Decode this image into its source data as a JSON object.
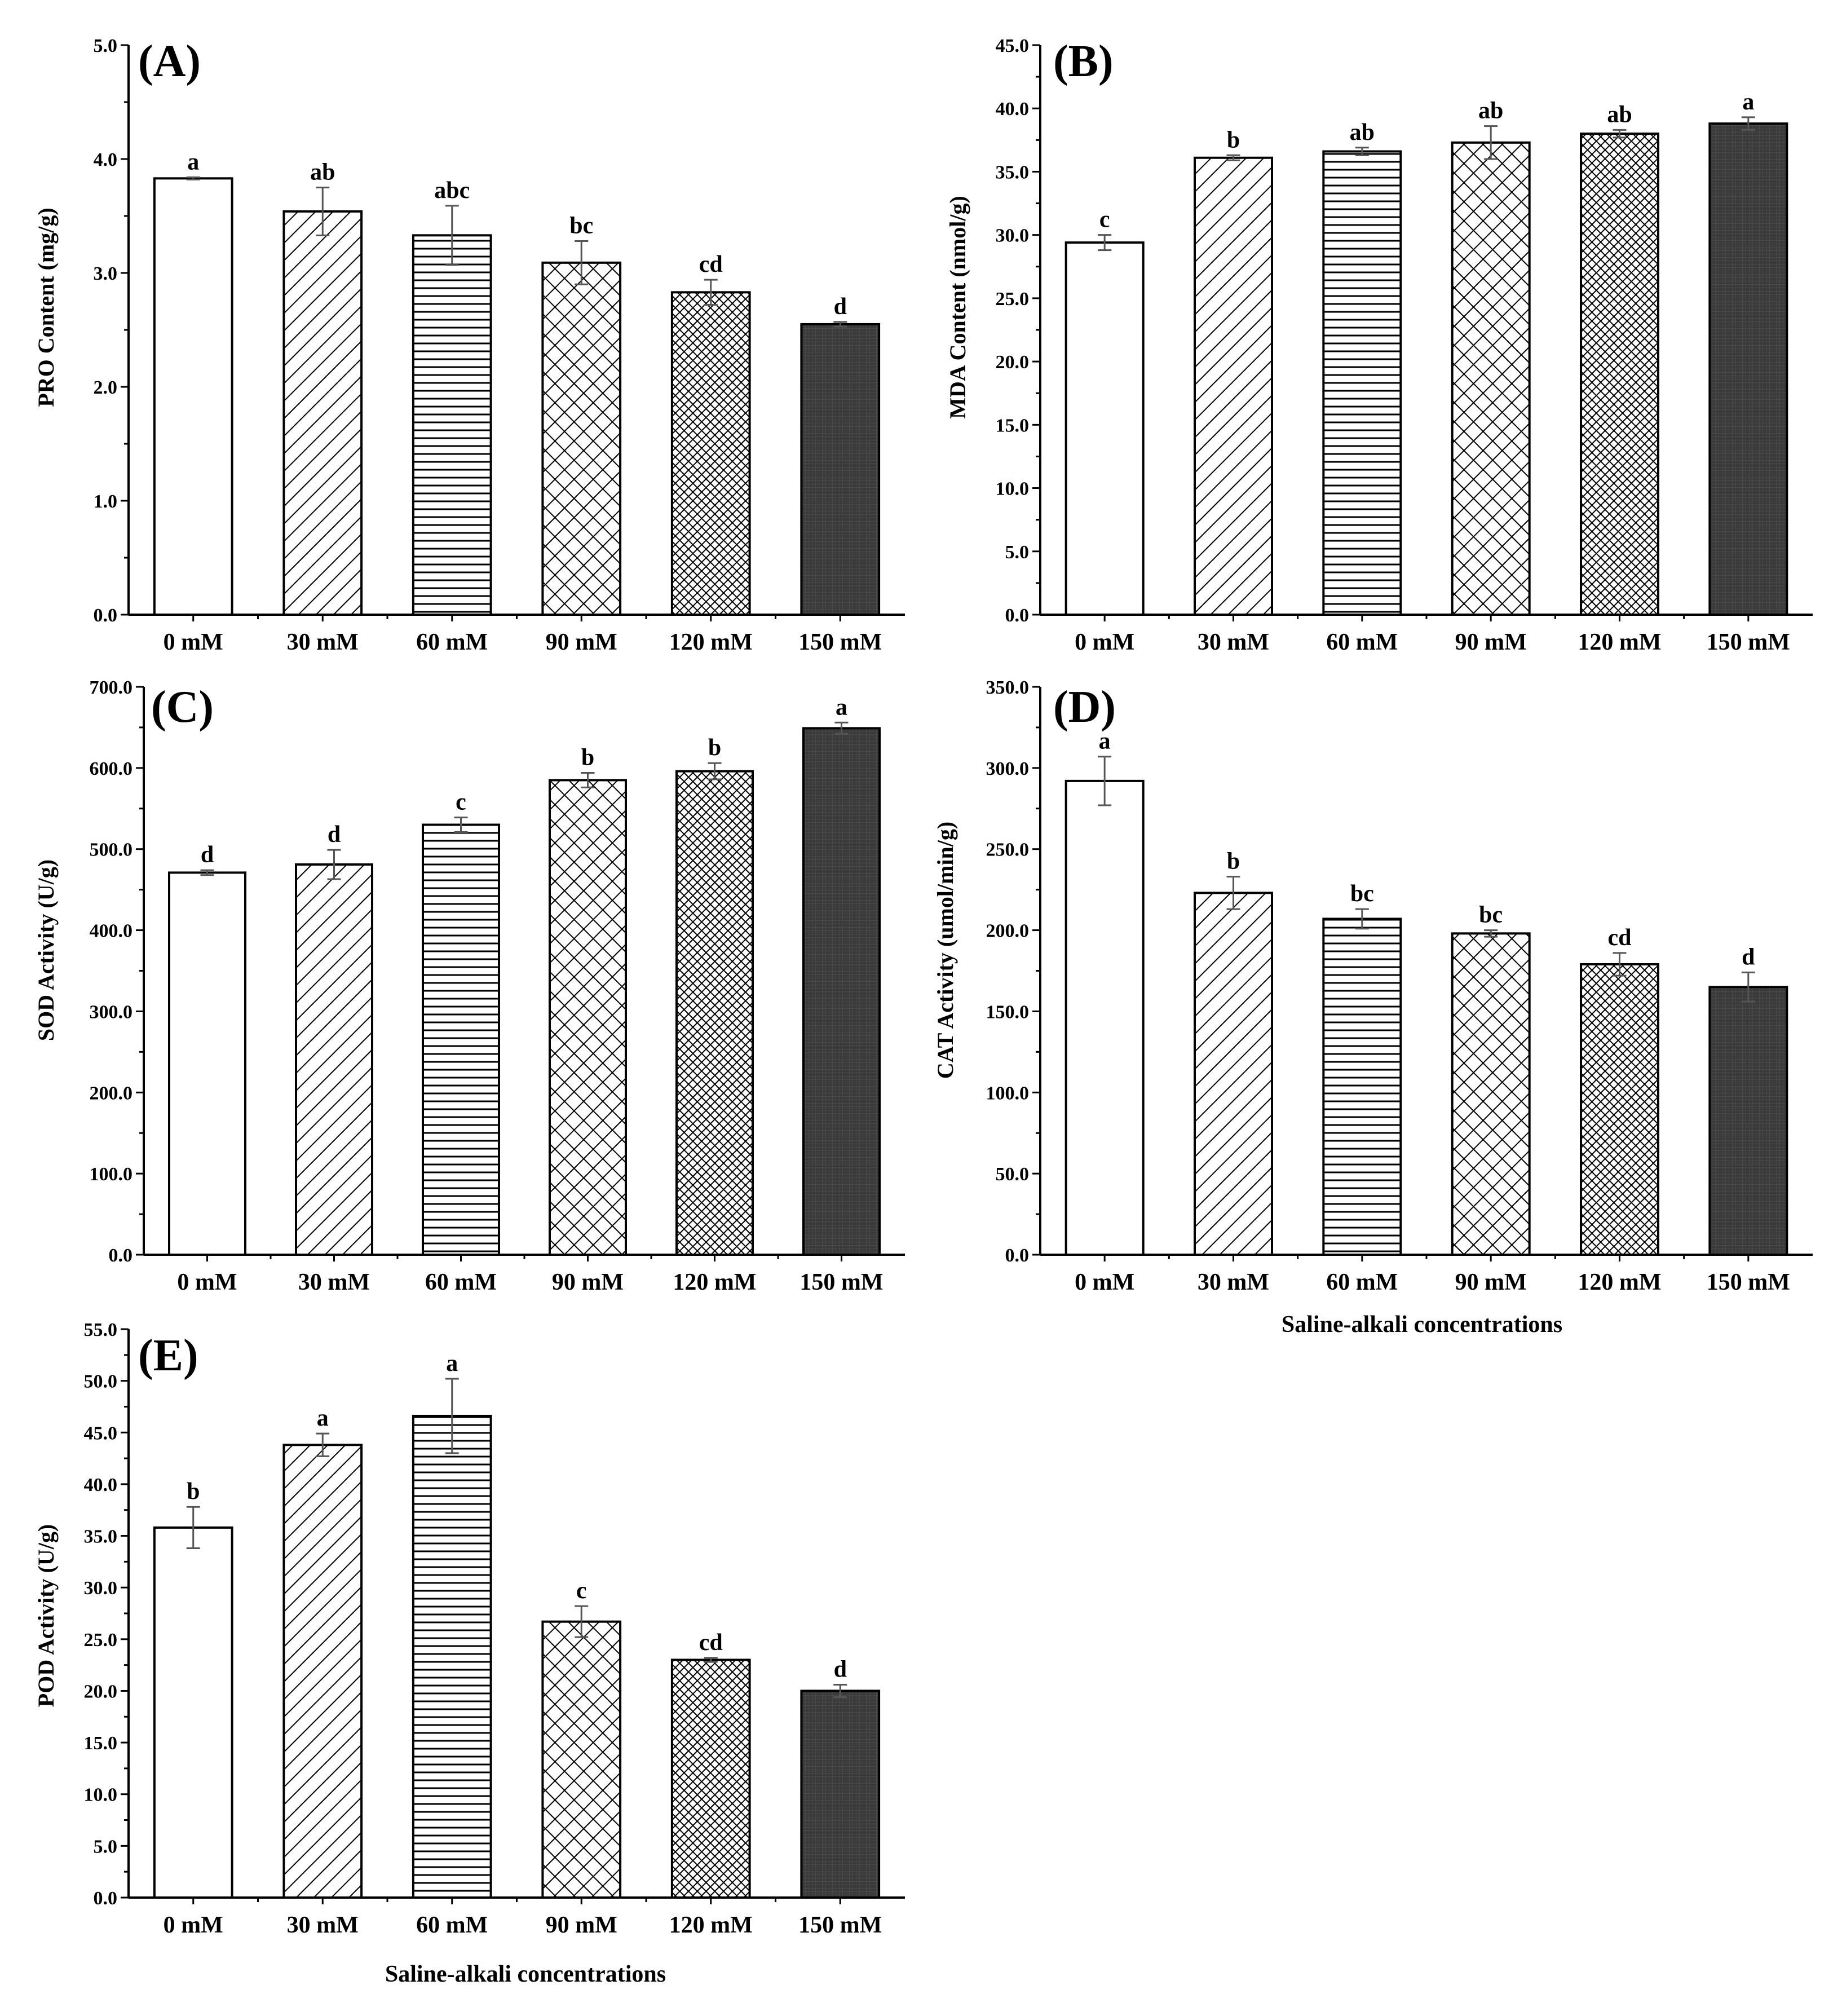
{
  "figure": {
    "categories": [
      "0 mM",
      "30 mM",
      "60 mM",
      "90 mM",
      "120 mM",
      "150 mM"
    ],
    "bar_patterns": [
      "white",
      "diagonal",
      "horizontal",
      "crosshatch",
      "fine-crosshatch",
      "dark-grid"
    ],
    "colors": {
      "axis": "#000000",
      "bar_fill": "#ffffff",
      "dark_bar": "#3a3a3a",
      "error_bar": "#555555"
    }
  },
  "chart_data": [
    {
      "id": "A",
      "type": "bar",
      "panel_label": "(A)",
      "ylabel": "PRO Content (mg/g)",
      "xlabel": "",
      "categories": [
        "0 mM",
        "30 mM",
        "60 mM",
        "90 mM",
        "120 mM",
        "150 mM"
      ],
      "values": [
        3.83,
        3.54,
        3.33,
        3.09,
        2.83,
        2.55
      ],
      "errors": [
        0.01,
        0.21,
        0.26,
        0.19,
        0.11,
        0.02
      ],
      "letters": [
        "a",
        "ab",
        "abc",
        "bc",
        "cd",
        "d"
      ],
      "ylim": [
        0,
        5
      ],
      "yticks": [
        "0.0",
        "1.0",
        "2.0",
        "3.0",
        "4.0",
        "5.0"
      ]
    },
    {
      "id": "B",
      "type": "bar",
      "panel_label": "(B)",
      "ylabel": "MDA Content (nmol/g)",
      "xlabel": "",
      "categories": [
        "0 mM",
        "30 mM",
        "60 mM",
        "90 mM",
        "120 mM",
        "150 mM"
      ],
      "values": [
        29.4,
        36.1,
        36.6,
        37.3,
        38.0,
        38.8
      ],
      "errors": [
        0.6,
        0.2,
        0.3,
        1.3,
        0.3,
        0.5
      ],
      "letters": [
        "c",
        "b",
        "ab",
        "ab",
        "ab",
        "a"
      ],
      "ylim": [
        0,
        45
      ],
      "yticks": [
        "0.0",
        "5.0",
        "10.0",
        "15.0",
        "20.0",
        "25.0",
        "30.0",
        "35.0",
        "40.0",
        "45.0"
      ]
    },
    {
      "id": "C",
      "type": "bar",
      "panel_label": "(C)",
      "ylabel": "SOD Activity (U/g)",
      "xlabel": "",
      "categories": [
        "0 mM",
        "30 mM",
        "60 mM",
        "90 mM",
        "120 mM",
        "150 mM"
      ],
      "values": [
        471,
        481,
        530,
        585,
        596,
        649
      ],
      "errors": [
        3,
        18,
        9,
        9,
        10,
        7
      ],
      "letters": [
        "d",
        "d",
        "c",
        "b",
        "b",
        "a"
      ],
      "ylim": [
        0,
        700
      ],
      "yticks": [
        "0.0",
        "100.0",
        "200.0",
        "300.0",
        "400.0",
        "500.0",
        "600.0",
        "700.0"
      ]
    },
    {
      "id": "D",
      "type": "bar",
      "panel_label": "(D)",
      "ylabel": "CAT Activity (umol/min/g)",
      "xlabel": "Saline-alkali concentrations",
      "categories": [
        "0 mM",
        "30 mM",
        "60 mM",
        "90 mM",
        "120 mM",
        "150 mM"
      ],
      "values": [
        292,
        223,
        207,
        198,
        179,
        165
      ],
      "errors": [
        15,
        10,
        6,
        2,
        7,
        9
      ],
      "letters": [
        "a",
        "b",
        "bc",
        "bc",
        "cd",
        "d"
      ],
      "ylim": [
        0,
        350
      ],
      "yticks": [
        "0.0",
        "50.0",
        "100.0",
        "150.0",
        "200.0",
        "250.0",
        "300.0",
        "350.0"
      ]
    },
    {
      "id": "E",
      "type": "bar",
      "panel_label": "(E)",
      "ylabel": "POD Activity (U/g)",
      "xlabel": "Saline-alkali concentrations",
      "categories": [
        "0 mM",
        "30 mM",
        "60 mM",
        "90 mM",
        "120 mM",
        "150 mM"
      ],
      "values": [
        35.8,
        43.8,
        46.6,
        26.7,
        23.0,
        20.0
      ],
      "errors": [
        2.0,
        1.1,
        3.6,
        1.5,
        0.2,
        0.6
      ],
      "letters": [
        "b",
        "a",
        "a",
        "c",
        "cd",
        "d"
      ],
      "ylim": [
        0,
        55
      ],
      "yticks": [
        "0.0",
        "5.0",
        "10.0",
        "15.0",
        "20.0",
        "25.0",
        "30.0",
        "35.0",
        "40.0",
        "45.0",
        "50.0",
        "55.0"
      ]
    }
  ]
}
